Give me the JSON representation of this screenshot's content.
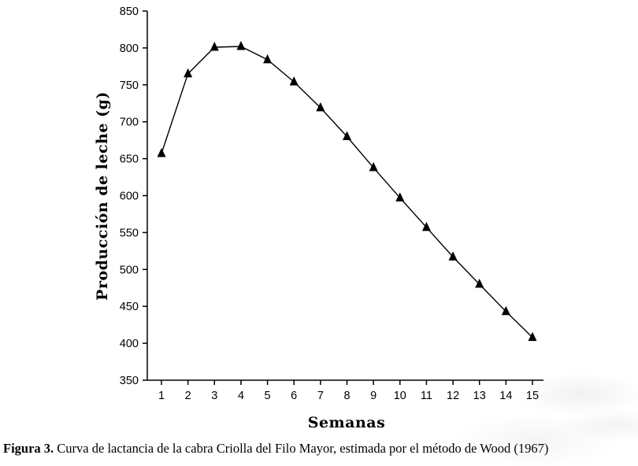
{
  "chart_data": {
    "type": "line",
    "series_name": "Producción de leche",
    "x": [
      1,
      2,
      3,
      4,
      5,
      6,
      7,
      8,
      9,
      10,
      11,
      12,
      13,
      14,
      15
    ],
    "values": [
      657,
      765,
      801,
      802,
      784,
      754,
      719,
      680,
      638,
      597,
      557,
      517,
      480,
      443,
      408
    ],
    "xlabel": "Semanas",
    "ylabel": "Producción de leche (g)",
    "ylim": [
      350,
      850
    ],
    "ytick_step": 50,
    "yticks": [
      350,
      400,
      450,
      500,
      550,
      600,
      650,
      700,
      750,
      800,
      850
    ],
    "marker": "triangle",
    "line_color": "#000000",
    "marker_color": "#000000",
    "grid": false,
    "legend": "none"
  },
  "caption": {
    "label": "Figura 3.",
    "text": " Curva de lactancia de la cabra Criolla del Filo Mayor, estimada por el método de Wood (1967)"
  }
}
